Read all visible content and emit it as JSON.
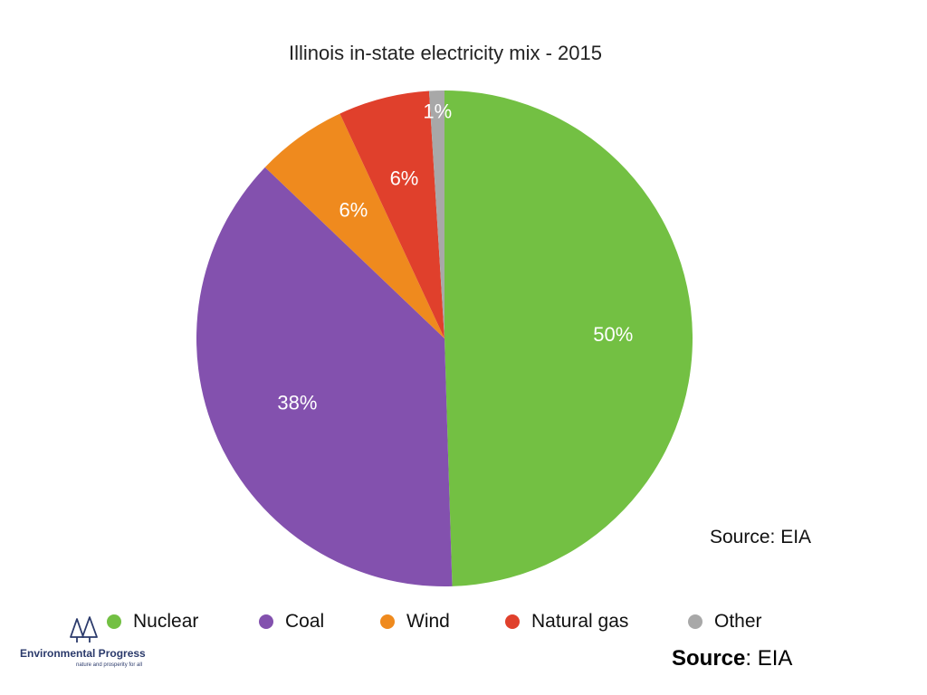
{
  "chart_data": {
    "type": "pie",
    "title": "Illinois in-state electricity mix - 2015",
    "slices": [
      {
        "name": "Nuclear",
        "value": 50,
        "label": "50%",
        "color": "#73c043"
      },
      {
        "name": "Coal",
        "value": 38,
        "label": "38%",
        "color": "#8351ae"
      },
      {
        "name": "Wind",
        "value": 6,
        "label": "6%",
        "color": "#ef8a1e"
      },
      {
        "name": "Natural gas",
        "value": 6,
        "label": "6%",
        "color": "#e0402c"
      },
      {
        "name": "Other",
        "value": 1,
        "label": "1%",
        "color": "#a8a8a8"
      }
    ],
    "legend": {
      "placement": "bottom",
      "items": [
        {
          "label": "Nuclear",
          "color": "#73c043"
        },
        {
          "label": "Coal",
          "color": "#8351ae"
        },
        {
          "label": "Wind",
          "color": "#ef8a1e"
        },
        {
          "label": "Natural gas",
          "color": "#e0402c"
        },
        {
          "label": "Other",
          "color": "#a8a8a8"
        }
      ]
    },
    "annotation": "Source: EIA"
  },
  "footer": {
    "source_bold": "Source",
    "source_rest": ": EIA"
  },
  "logo": {
    "name": "Environmental Progress",
    "tagline": "nature and prosperity for all",
    "icon": "trees-icon",
    "color": "#2b3a6b"
  }
}
